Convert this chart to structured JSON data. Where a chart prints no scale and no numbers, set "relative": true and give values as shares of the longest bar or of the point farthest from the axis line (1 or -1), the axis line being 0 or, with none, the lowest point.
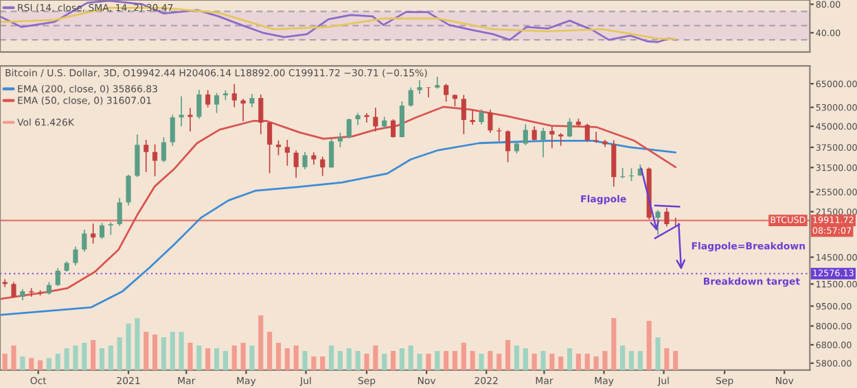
{
  "chart_data": [
    {
      "type": "line",
      "xlim": [
        "2020-08-23",
        "2022-11-27"
      ],
      "ylim": [
        13,
        86
      ],
      "yticks": [
        {
          "value": 80,
          "label": "80.00"
        },
        {
          "value": 40,
          "label": "40.00"
        }
      ],
      "tick_labels": "y",
      "legend": "top left",
      "bands": [
        {
          "axis": "y",
          "from": 30,
          "to": 70,
          "color": "#e9d5d8"
        }
      ],
      "ref_lines": [
        {
          "axis": "y",
          "value": 70,
          "color": "#9b93a8",
          "line_style": "dashed"
        },
        {
          "axis": "y",
          "value": 50,
          "color": "#9b93a8",
          "line_style": "dashed"
        },
        {
          "axis": "y",
          "value": 30,
          "color": "#9b93a8",
          "line_style": "dashed"
        }
      ],
      "series": [
        {
          "name": "RSI (14, close, SMA, 14, 2) 30.47",
          "color": "#8c6bc8",
          "x": [
            "2020-08-23",
            "2020-09-14",
            "2020-10-17",
            "2020-11-20",
            "2020-12-12",
            "2021-01-15",
            "2021-02-06",
            "2021-03-12",
            "2021-04-03",
            "2021-04-26",
            "2021-05-18",
            "2021-06-09",
            "2021-07-02",
            "2021-07-24",
            "2021-08-16",
            "2021-09-07",
            "2021-09-18",
            "2021-10-11",
            "2021-11-02",
            "2021-11-24",
            "2021-12-17",
            "2022-01-08",
            "2022-01-25",
            "2022-02-11",
            "2022-03-05",
            "2022-03-27",
            "2022-04-19",
            "2022-05-06",
            "2022-05-28",
            "2022-06-14",
            "2022-06-25",
            "2022-07-06",
            "2022-07-13"
          ],
          "values": [
            63,
            48,
            55,
            82,
            85,
            80,
            67,
            72,
            63,
            51,
            40,
            34,
            38,
            59,
            65,
            63,
            51,
            69,
            69,
            51,
            44,
            38,
            30,
            48,
            46,
            57,
            44,
            30,
            36,
            28,
            27,
            32,
            30
          ]
        },
        {
          "color": "#e6c65a",
          "x": [
            "2020-08-23",
            "2020-10-17",
            "2020-12-12",
            "2021-02-06",
            "2021-04-03",
            "2021-05-29",
            "2021-07-24",
            "2021-09-18",
            "2021-11-13",
            "2022-01-08",
            "2022-03-05",
            "2022-04-30",
            "2022-06-25",
            "2022-07-13"
          ],
          "values": [
            55,
            58,
            75,
            75,
            68,
            45,
            48,
            60,
            60,
            45,
            42,
            45,
            32,
            31
          ]
        }
      ]
    },
    {
      "type": "candlestick",
      "title": "Bitcoin / U.S. Dollar, 3D, O19942.44 H20406.14 L18892.00 C19911.72 −30.71 (−0.15%)",
      "log": "y",
      "legend": "top left",
      "xlim": [
        "2020-08-23",
        "2022-11-27"
      ],
      "ylim": [
        5460,
        75800
      ],
      "xticks": [
        {
          "value": "2020-10-01",
          "label": "Oct"
        },
        {
          "value": "2021-01-01",
          "label": "2021"
        },
        {
          "value": "2021-03-01",
          "label": "Mar"
        },
        {
          "value": "2021-05-01",
          "label": "May"
        },
        {
          "value": "2021-07-01",
          "label": "Jul"
        },
        {
          "value": "2021-09-01",
          "label": "Sep"
        },
        {
          "value": "2021-11-01",
          "label": "Nov"
        },
        {
          "value": "2022-01-01",
          "label": "2022"
        },
        {
          "value": "2022-03-01",
          "label": "Mar"
        },
        {
          "value": "2022-05-01",
          "label": "May"
        },
        {
          "value": "2022-07-01",
          "label": "Jul"
        },
        {
          "value": "2022-09-01",
          "label": "Sep"
        },
        {
          "value": "2022-11-01",
          "label": "Nov"
        }
      ],
      "yticks": [
        {
          "value": 65000,
          "label": "65000.00"
        },
        {
          "value": 53000,
          "label": "53000.00"
        },
        {
          "value": 45000,
          "label": "45000.00"
        },
        {
          "value": 37500,
          "label": "37500.00"
        },
        {
          "value": 31500,
          "label": "31500.00"
        },
        {
          "value": 25500,
          "label": "25500.00"
        },
        {
          "value": 21500,
          "label": "21500.00"
        },
        {
          "value": 14500,
          "label": "14500.00"
        },
        {
          "value": 11500,
          "label": "11500.00"
        },
        {
          "value": 9500,
          "label": "9500.00"
        },
        {
          "value": 8000,
          "label": "8000.00"
        },
        {
          "value": 6800,
          "label": "6800.00"
        },
        {
          "value": 5800,
          "label": "5800.00"
        }
      ],
      "x": [
        "2020-08-28",
        "2020-09-06",
        "2020-09-15",
        "2020-09-24",
        "2020-10-03",
        "2020-10-12",
        "2020-10-21",
        "2020-10-30",
        "2020-11-08",
        "2020-11-17",
        "2020-11-26",
        "2020-12-05",
        "2020-12-14",
        "2020-12-23",
        "2021-01-01",
        "2021-01-10",
        "2021-01-19",
        "2021-01-28",
        "2021-02-06",
        "2021-02-15",
        "2021-02-24",
        "2021-03-05",
        "2021-03-14",
        "2021-03-23",
        "2021-04-01",
        "2021-04-10",
        "2021-04-19",
        "2021-04-28",
        "2021-05-07",
        "2021-05-16",
        "2021-05-25",
        "2021-06-03",
        "2021-06-12",
        "2021-06-21",
        "2021-06-30",
        "2021-07-09",
        "2021-07-18",
        "2021-07-27",
        "2021-08-05",
        "2021-08-14",
        "2021-08-23",
        "2021-09-01",
        "2021-09-10",
        "2021-09-19",
        "2021-09-28",
        "2021-10-07",
        "2021-10-16",
        "2021-10-25",
        "2021-11-03",
        "2021-11-12",
        "2021-11-21",
        "2021-11-30",
        "2021-12-09",
        "2021-12-18",
        "2021-12-27",
        "2022-01-05",
        "2022-01-14",
        "2022-01-23",
        "2022-02-01",
        "2022-02-10",
        "2022-02-19",
        "2022-02-28",
        "2022-03-09",
        "2022-03-18",
        "2022-03-27",
        "2022-04-05",
        "2022-04-14",
        "2022-04-23",
        "2022-05-02",
        "2022-05-11",
        "2022-05-20",
        "2022-05-29",
        "2022-06-07",
        "2022-06-16",
        "2022-06-25",
        "2022-07-04",
        "2022-07-13"
      ],
      "ohlc": [
        [
          11700,
          12000,
          11200,
          11500
        ],
        [
          11500,
          11700,
          10200,
          10300
        ],
        [
          10300,
          11000,
          10000,
          10800
        ],
        [
          10800,
          11100,
          10300,
          10700
        ],
        [
          10700,
          10900,
          10400,
          10600
        ],
        [
          10600,
          11700,
          10500,
          11400
        ],
        [
          11400,
          13200,
          11300,
          12900
        ],
        [
          12900,
          14000,
          12800,
          13800
        ],
        [
          13800,
          15900,
          13500,
          15500
        ],
        [
          15500,
          18400,
          15200,
          17800
        ],
        [
          17800,
          19400,
          16300,
          17200
        ],
        [
          17200,
          19500,
          17000,
          19100
        ],
        [
          19100,
          19600,
          17600,
          19300
        ],
        [
          19300,
          24200,
          19000,
          23300
        ],
        [
          23300,
          29600,
          22700,
          29300
        ],
        [
          29300,
          41900,
          29000,
          38300
        ],
        [
          38300,
          40000,
          30300,
          36000
        ],
        [
          36000,
          38500,
          29200,
          33400
        ],
        [
          33400,
          40900,
          33000,
          39200
        ],
        [
          39200,
          49700,
          38000,
          48600
        ],
        [
          48600,
          58300,
          45000,
          49700
        ],
        [
          49700,
          52600,
          43000,
          48800
        ],
        [
          48800,
          61700,
          48000,
          59300
        ],
        [
          59300,
          61500,
          53000,
          54300
        ],
        [
          54300,
          60000,
          50500,
          58800
        ],
        [
          58800,
          61300,
          56500,
          59800
        ],
        [
          59800,
          64800,
          53000,
          56300
        ],
        [
          56300,
          57000,
          47000,
          54800
        ],
        [
          54800,
          59500,
          53000,
          57400
        ],
        [
          57400,
          59300,
          42000,
          46400
        ],
        [
          46400,
          46600,
          30000,
          38400
        ],
        [
          38400,
          39800,
          35000,
          37600
        ],
        [
          37600,
          40000,
          32000,
          35800
        ],
        [
          35800,
          36500,
          28800,
          31600
        ],
        [
          31600,
          36000,
          31000,
          35000
        ],
        [
          35000,
          35900,
          32300,
          33800
        ],
        [
          33800,
          34600,
          29300,
          31500
        ],
        [
          31500,
          40500,
          31400,
          39500
        ],
        [
          39500,
          42600,
          37500,
          40900
        ],
        [
          40900,
          48100,
          40500,
          47800
        ],
        [
          47800,
          50500,
          45500,
          49500
        ],
        [
          49500,
          50400,
          46500,
          48800
        ],
        [
          48800,
          52900,
          43000,
          44900
        ],
        [
          44900,
          48800,
          44000,
          47300
        ],
        [
          47300,
          47800,
          40800,
          41000
        ],
        [
          41000,
          55800,
          40900,
          53800
        ],
        [
          53800,
          62900,
          53300,
          61500
        ],
        [
          61500,
          67000,
          59500,
          63100
        ],
        [
          63100,
          63200,
          57800,
          62900
        ],
        [
          62900,
          69000,
          62300,
          64200
        ],
        [
          64200,
          65000,
          55700,
          59000
        ],
        [
          59000,
          59200,
          53500,
          57000
        ],
        [
          57000,
          59000,
          42000,
          47500
        ],
        [
          47500,
          51900,
          45600,
          46700
        ],
        [
          46700,
          52100,
          45700,
          50700
        ],
        [
          50700,
          51900,
          42500,
          43400
        ],
        [
          43400,
          44400,
          39600,
          43100
        ],
        [
          43100,
          43400,
          33000,
          36300
        ],
        [
          36300,
          39200,
          35600,
          38700
        ],
        [
          38700,
          45800,
          38200,
          43600
        ],
        [
          43600,
          45000,
          39800,
          40000
        ],
        [
          40000,
          44400,
          34400,
          43200
        ],
        [
          43200,
          45000,
          37200,
          41900
        ],
        [
          41900,
          42400,
          38000,
          41200
        ],
        [
          41200,
          48200,
          40900,
          46800
        ],
        [
          46800,
          48000,
          45000,
          45500
        ],
        [
          45500,
          46000,
          39300,
          39900
        ],
        [
          39900,
          42900,
          39000,
          39500
        ],
        [
          39500,
          40000,
          37600,
          38500
        ],
        [
          38500,
          39900,
          26700,
          29000
        ],
        [
          29000,
          31400,
          28700,
          29200
        ],
        [
          29200,
          31300,
          28000,
          29400
        ],
        [
          29400,
          32300,
          29300,
          31200
        ],
        [
          31200,
          31500,
          20100,
          20400
        ],
        [
          20400,
          21800,
          17600,
          21500
        ],
        [
          21500,
          22200,
          18900,
          19300
        ],
        [
          19942.44,
          20406.14,
          18892.0,
          19911.72
        ]
      ],
      "series": [
        {
          "type": "line",
          "name": "EMA (200, close, 0) 35866.83",
          "color": "#3d8bd4",
          "x": [
            "2020-08-23",
            "2020-11-24",
            "2020-12-26",
            "2021-01-23",
            "2021-02-16",
            "2021-03-16",
            "2021-04-13",
            "2021-05-11",
            "2021-06-22",
            "2021-08-07",
            "2021-09-22",
            "2021-10-16",
            "2021-11-13",
            "2021-12-25",
            "2022-03-05",
            "2022-04-20",
            "2022-05-28",
            "2022-07-13"
          ],
          "values": [
            8800,
            9400,
            10800,
            13300,
            16100,
            20400,
            23700,
            25800,
            26600,
            27700,
            29900,
            33800,
            36600,
            38900,
            39700,
            39700,
            37500,
            35900
          ]
        },
        {
          "type": "line",
          "name": "EMA (50, close, 0) 31607.01",
          "color": "#d9534f",
          "x": [
            "2020-08-23",
            "2020-10-08",
            "2020-10-31",
            "2020-11-28",
            "2020-12-22",
            "2021-01-10",
            "2021-01-28",
            "2021-02-17",
            "2021-03-12",
            "2021-04-04",
            "2021-05-08",
            "2021-05-22",
            "2021-06-25",
            "2021-07-19",
            "2021-08-17",
            "2021-09-10",
            "2021-10-02",
            "2021-10-21",
            "2021-11-18",
            "2021-12-16",
            "2022-01-22",
            "2022-03-08",
            "2022-04-23",
            "2022-06-01",
            "2022-07-13"
          ],
          "values": [
            10100,
            10700,
            11100,
            12800,
            15500,
            20900,
            26800,
            31200,
            38900,
            43700,
            47100,
            47100,
            42600,
            40400,
            41200,
            43700,
            45200,
            48500,
            53200,
            52000,
            49100,
            45200,
            44700,
            39700,
            31600
          ]
        }
      ],
      "ref_lines": [
        {
          "axis": "y",
          "value": 19911.72,
          "label": "19911.72",
          "color": "#e0574f",
          "line_style": "solid"
        },
        {
          "axis": "y",
          "value": 12576.13,
          "label": "12576.13",
          "color": "#6a3fd0",
          "line_style": "dotted"
        }
      ],
      "annotations": [
        "Flagpole",
        "Flagpole=Breakdown",
        "Breakdown target",
        "BTCUSD",
        "08:57:07"
      ]
    },
    {
      "type": "bar",
      "relative": true,
      "tick_labels": false,
      "legend": "top left",
      "xlim": [
        "2020-08-23",
        "2022-11-27"
      ],
      "series": [
        {
          "name": "Vol 61.426K",
          "x": [
            "2020-08-28",
            "2020-09-06",
            "2020-09-15",
            "2020-09-24",
            "2020-10-03",
            "2020-10-12",
            "2020-10-21",
            "2020-10-30",
            "2020-11-08",
            "2020-11-17",
            "2020-11-26",
            "2020-12-05",
            "2020-12-14",
            "2020-12-23",
            "2021-01-01",
            "2021-01-10",
            "2021-01-19",
            "2021-01-28",
            "2021-02-06",
            "2021-02-15",
            "2021-02-24",
            "2021-03-05",
            "2021-03-14",
            "2021-03-23",
            "2021-04-01",
            "2021-04-10",
            "2021-04-19",
            "2021-04-28",
            "2021-05-07",
            "2021-05-16",
            "2021-05-25",
            "2021-06-03",
            "2021-06-12",
            "2021-06-21",
            "2021-06-30",
            "2021-07-09",
            "2021-07-18",
            "2021-07-27",
            "2021-08-05",
            "2021-08-14",
            "2021-08-23",
            "2021-09-01",
            "2021-09-10",
            "2021-09-19",
            "2021-09-28",
            "2021-10-07",
            "2021-10-16",
            "2021-10-25",
            "2021-11-03",
            "2021-11-12",
            "2021-11-21",
            "2021-11-30",
            "2021-12-09",
            "2021-12-18",
            "2021-12-27",
            "2022-01-05",
            "2022-01-14",
            "2022-01-23",
            "2022-02-01",
            "2022-02-10",
            "2022-02-19",
            "2022-02-28",
            "2022-03-09",
            "2022-03-18",
            "2022-03-27",
            "2022-04-05",
            "2022-04-14",
            "2022-04-23",
            "2022-05-02",
            "2022-05-11",
            "2022-05-20",
            "2022-05-29",
            "2022-06-07",
            "2022-06-16",
            "2022-06-25",
            "2022-07-04",
            "2022-07-13"
          ],
          "values": [
            0.3,
            0.45,
            0.25,
            0.22,
            0.18,
            0.22,
            0.3,
            0.4,
            0.45,
            0.5,
            0.55,
            0.4,
            0.45,
            0.6,
            0.85,
            0.95,
            0.7,
            0.65,
            0.6,
            0.7,
            0.7,
            0.5,
            0.45,
            0.4,
            0.4,
            0.35,
            0.45,
            0.5,
            0.45,
            1.0,
            0.7,
            0.5,
            0.4,
            0.45,
            0.35,
            0.25,
            0.25,
            0.45,
            0.35,
            0.4,
            0.35,
            0.3,
            0.45,
            0.3,
            0.35,
            0.4,
            0.45,
            0.3,
            0.3,
            0.35,
            0.35,
            0.35,
            0.5,
            0.35,
            0.3,
            0.35,
            0.3,
            0.55,
            0.45,
            0.4,
            0.3,
            0.35,
            0.3,
            0.25,
            0.4,
            0.3,
            0.3,
            0.25,
            0.35,
            0.95,
            0.45,
            0.35,
            0.35,
            0.9,
            0.6,
            0.4,
            0.35
          ],
          "colors": [
            "#f29c8f",
            "#f29c8f",
            "#9fd3c1",
            "#f29c8f",
            "#f29c8f",
            "#9fd3c1",
            "#9fd3c1",
            "#9fd3c1",
            "#9fd3c1",
            "#9fd3c1",
            "#f29c8f",
            "#9fd3c1",
            "#9fd3c1",
            "#9fd3c1",
            "#9fd3c1",
            "#9fd3c1",
            "#f29c8f",
            "#f29c8f",
            "#9fd3c1",
            "#9fd3c1",
            "#9fd3c1",
            "#f29c8f",
            "#9fd3c1",
            "#f29c8f",
            "#9fd3c1",
            "#9fd3c1",
            "#f29c8f",
            "#f29c8f",
            "#9fd3c1",
            "#f29c8f",
            "#f29c8f",
            "#f29c8f",
            "#f29c8f",
            "#f29c8f",
            "#9fd3c1",
            "#f29c8f",
            "#f29c8f",
            "#9fd3c1",
            "#9fd3c1",
            "#9fd3c1",
            "#9fd3c1",
            "#f29c8f",
            "#f29c8f",
            "#9fd3c1",
            "#f29c8f",
            "#9fd3c1",
            "#9fd3c1",
            "#9fd3c1",
            "#f29c8f",
            "#9fd3c1",
            "#f29c8f",
            "#f29c8f",
            "#f29c8f",
            "#f29c8f",
            "#9fd3c1",
            "#f29c8f",
            "#f29c8f",
            "#f29c8f",
            "#9fd3c1",
            "#9fd3c1",
            "#f29c8f",
            "#9fd3c1",
            "#f29c8f",
            "#f29c8f",
            "#9fd3c1",
            "#f29c8f",
            "#f29c8f",
            "#f29c8f",
            "#f29c8f",
            "#f29c8f",
            "#9fd3c1",
            "#9fd3c1",
            "#9fd3c1",
            "#f29c8f",
            "#9fd3c1",
            "#f29c8f",
            "#f29c8f"
          ]
        }
      ]
    }
  ]
}
